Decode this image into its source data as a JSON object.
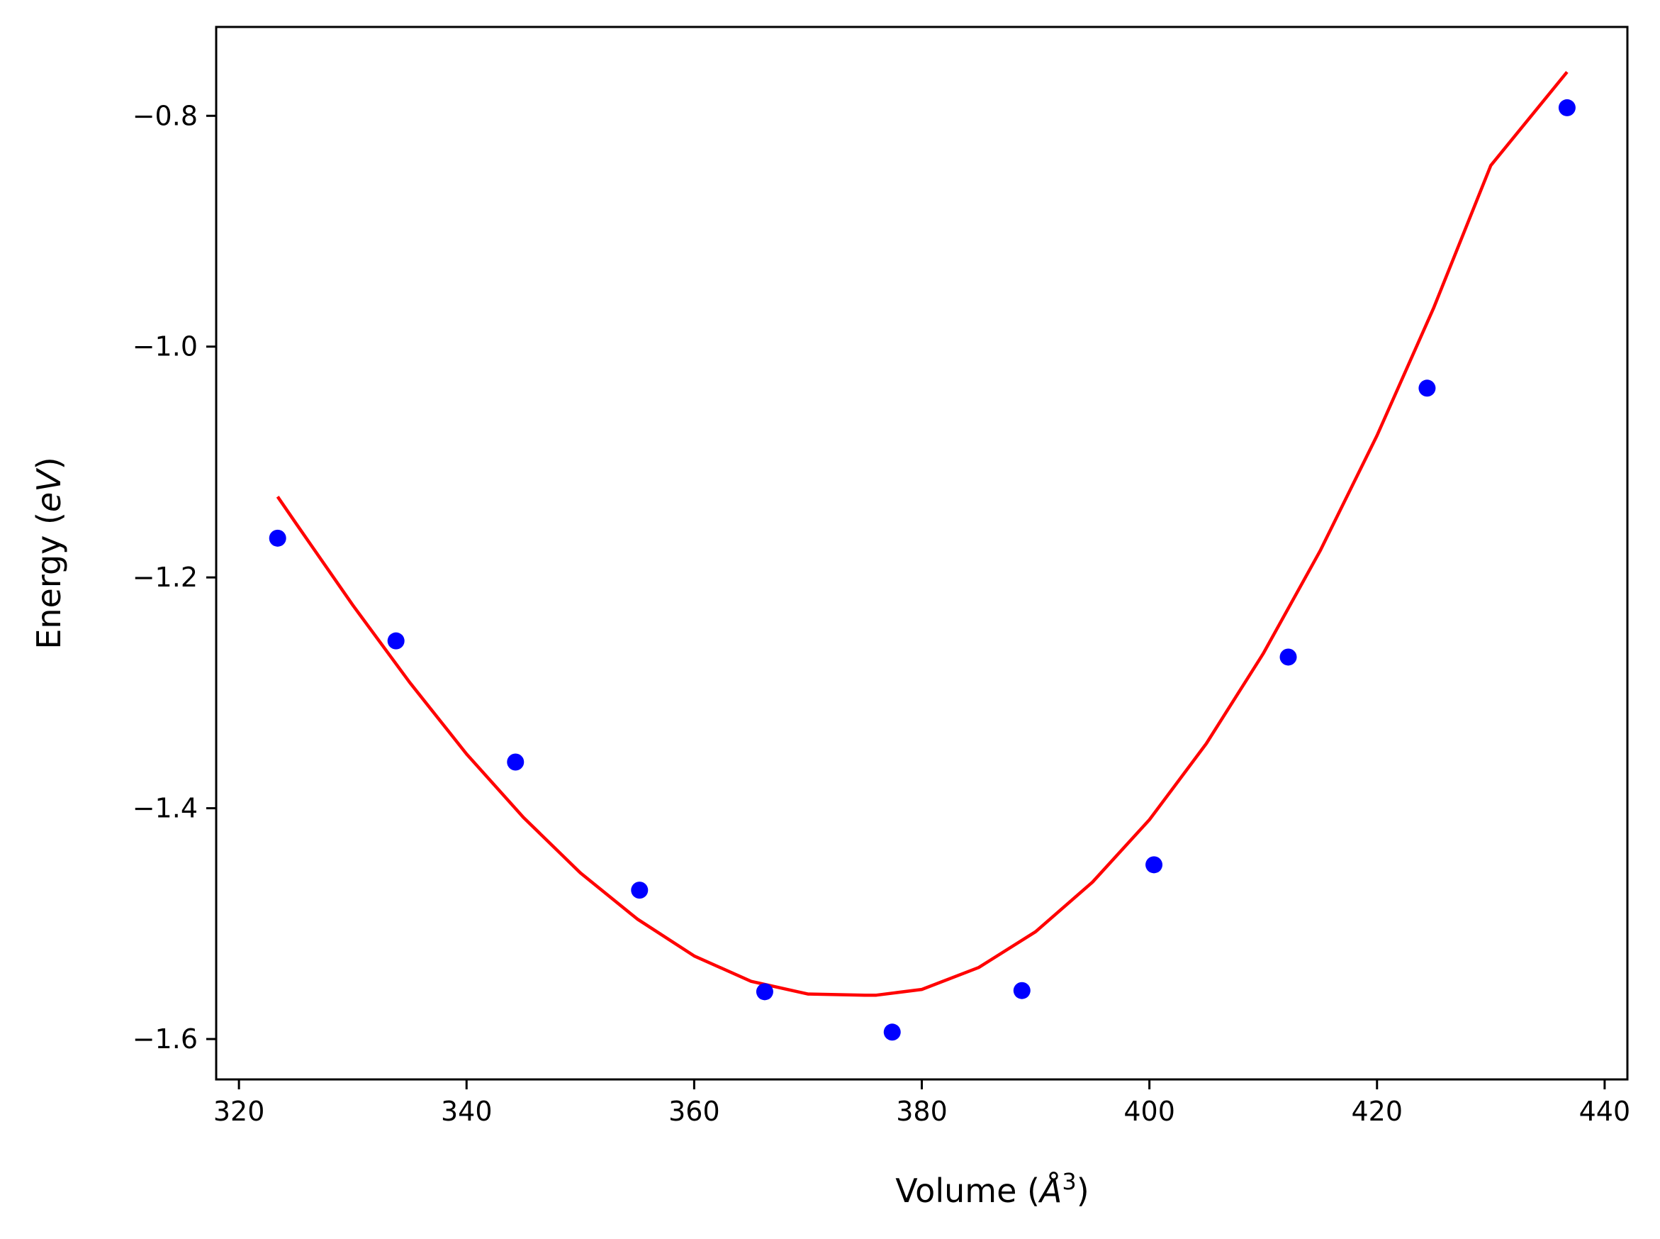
{
  "chart_data": {
    "type": "scatter",
    "title": "",
    "xlabel": {
      "prefix": "Volume (",
      "italic": "Å",
      "superscript": "3",
      "suffix": ")"
    },
    "ylabel": {
      "prefix": "Energy (",
      "italic": "eV",
      "suffix": ")"
    },
    "xlim": [
      318,
      442
    ],
    "ylim": [
      -1.635,
      -0.723
    ],
    "xticks": [
      320,
      340,
      360,
      380,
      400,
      420,
      440
    ],
    "xtick_labels": [
      "320",
      "340",
      "360",
      "380",
      "400",
      "420",
      "440"
    ],
    "yticks": [
      -0.8,
      -1.0,
      -1.2,
      -1.4,
      -1.6
    ],
    "ytick_labels": [
      "−0.8",
      "−1.0",
      "−1.2",
      "−1.4",
      "−1.6"
    ],
    "grid": false,
    "series": [
      {
        "kind": "points",
        "color": "#0000ff",
        "x": [
          323.4,
          333.8,
          344.3,
          355.2,
          366.2,
          377.4,
          388.8,
          400.4,
          412.2,
          424.4,
          436.7
        ],
        "y": [
          -1.166,
          -1.255,
          -1.36,
          -1.471,
          -1.559,
          -1.594,
          -1.558,
          -1.449,
          -1.269,
          -1.036,
          -0.793
        ]
      },
      {
        "kind": "fit-line",
        "color": "#ff0000",
        "x": [
          323.4,
          325,
          330,
          335,
          340,
          345,
          350,
          355,
          360,
          365,
          370,
          375,
          376,
          380,
          385,
          390,
          395,
          400,
          405,
          410,
          415,
          420,
          425,
          430,
          436.7
        ],
        "y": [
          -1.13,
          -1.153,
          -1.224,
          -1.291,
          -1.353,
          -1.408,
          -1.456,
          -1.496,
          -1.528,
          -1.55,
          -1.561,
          -1.562,
          -1.562,
          -1.557,
          -1.538,
          -1.507,
          -1.464,
          -1.41,
          -1.344,
          -1.266,
          -1.177,
          -1.077,
          -0.966,
          -0.843,
          -0.762
        ]
      }
    ]
  }
}
